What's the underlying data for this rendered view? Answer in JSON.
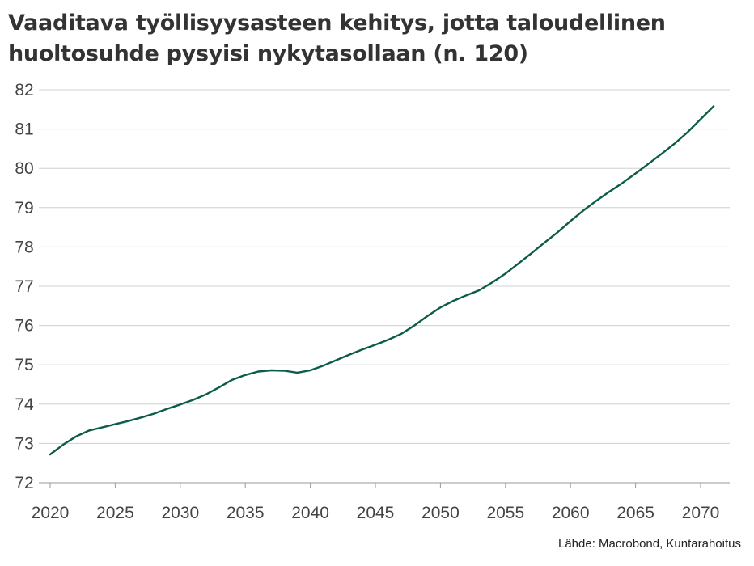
{
  "title": {
    "line1": "Vaaditava työllisyysasteen kehitys, jotta taloudellinen",
    "line2": "huoltosuhde pysyisi nykytasollaan (n. 120)"
  },
  "source": "Lähde: Macrobond, Kuntarahoitus",
  "colors": {
    "line": "#0d5c4a",
    "grid": "#d0d0d0",
    "axis": "#999999",
    "text": "#444444"
  },
  "chart_data": {
    "type": "line",
    "title": "Vaaditava työllisyysasteen kehitys, jotta taloudellinen huoltosuhde pysyisi nykytasollaan (n. 120)",
    "xlabel": "",
    "ylabel": "",
    "xlim": [
      2020,
      2072
    ],
    "ylim": [
      72,
      82
    ],
    "grid": true,
    "legend": "none",
    "x_ticks": [
      2020,
      2025,
      2030,
      2035,
      2040,
      2045,
      2050,
      2055,
      2060,
      2065,
      2070
    ],
    "y_ticks": [
      72,
      73,
      74,
      75,
      76,
      77,
      78,
      79,
      80,
      81,
      82
    ],
    "series": [
      {
        "x": [
          2020,
          2021,
          2022,
          2023,
          2024,
          2025,
          2026,
          2027,
          2028,
          2029,
          2030,
          2031,
          2032,
          2033,
          2034,
          2035,
          2036,
          2037,
          2038,
          2039,
          2040,
          2041,
          2042,
          2043,
          2044,
          2045,
          2046,
          2047,
          2048,
          2049,
          2050,
          2051,
          2052,
          2053,
          2054,
          2055,
          2056,
          2057,
          2058,
          2059,
          2060,
          2061,
          2062,
          2063,
          2064,
          2065,
          2066,
          2067,
          2068,
          2069,
          2070,
          2071
        ],
        "values": [
          72.72,
          72.97,
          73.18,
          73.33,
          73.41,
          73.49,
          73.57,
          73.66,
          73.76,
          73.88,
          73.99,
          74.11,
          74.25,
          74.43,
          74.62,
          74.74,
          74.83,
          74.86,
          74.85,
          74.8,
          74.86,
          74.98,
          75.12,
          75.26,
          75.39,
          75.51,
          75.64,
          75.79,
          76.0,
          76.24,
          76.46,
          76.63,
          76.77,
          76.9,
          77.1,
          77.32,
          77.58,
          77.84,
          78.11,
          78.37,
          78.66,
          78.93,
          79.18,
          79.41,
          79.63,
          79.87,
          80.12,
          80.37,
          80.63,
          80.92,
          81.25,
          81.58
        ]
      }
    ]
  }
}
